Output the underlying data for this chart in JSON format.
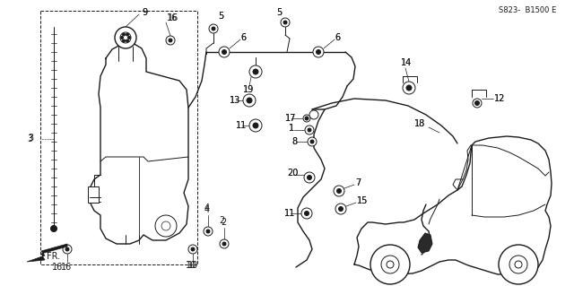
{
  "bg_color": "#ffffff",
  "line_color": "#1a1a1a",
  "code": "S823-  B1500 E",
  "fig_w": 6.4,
  "fig_h": 3.19,
  "dpi": 100
}
